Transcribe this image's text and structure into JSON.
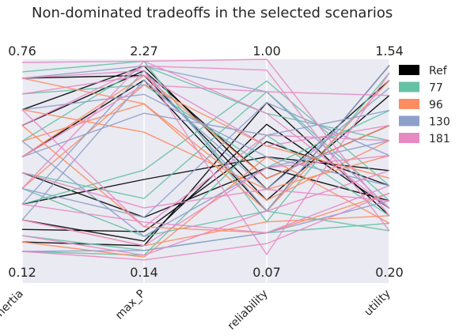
{
  "chart_data": {
    "type": "parallel_coordinates",
    "title": "Non-dominated tradeoffs in the selected scenarios",
    "axes": [
      {
        "name": "inertia",
        "max": 0.76,
        "min": 0.12,
        "max_label": "0.76",
        "min_label": "0.12"
      },
      {
        "name": "max_P",
        "max": 2.27,
        "min": 0.14,
        "max_label": "2.27",
        "min_label": "0.14"
      },
      {
        "name": "reliability",
        "max": 1.0,
        "min": 0.07,
        "max_label": "1.00",
        "min_label": "0.07"
      },
      {
        "name": "utility",
        "max": 1.54,
        "min": 0.2,
        "max_label": "1.54",
        "min_label": "0.20"
      }
    ],
    "legend": {
      "position": "right",
      "entries": [
        {
          "label": "Ref",
          "color": "#000000"
        },
        {
          "label": "77",
          "color": "#66c2a5"
        },
        {
          "label": "96",
          "color": "#fc8d62"
        },
        {
          "label": "130",
          "color": "#8da0cb"
        },
        {
          "label": "181",
          "color": "#e78ac3"
        }
      ]
    },
    "background": "#eaeaf2",
    "grid": true,
    "series": [
      {
        "name": "Ref",
        "color": "#000000",
        "lines": [
          [
            0.7,
            2.1,
            0.35,
            1.3
          ],
          [
            0.6,
            2.2,
            0.4,
            1.4
          ],
          [
            0.3,
            1.0,
            0.55,
            0.8
          ],
          [
            0.22,
            0.45,
            0.62,
            0.7
          ],
          [
            0.18,
            0.3,
            0.8,
            0.5
          ],
          [
            0.4,
            0.6,
            0.5,
            0.6
          ],
          [
            0.55,
            2.15,
            0.45,
            1.1
          ],
          [
            0.25,
            0.35,
            0.7,
            0.55
          ],
          [
            0.45,
            2.05,
            0.3,
            1.5
          ]
        ]
      },
      {
        "name": "77",
        "color": "#66c2a5",
        "lines": [
          [
            0.4,
            0.8,
            0.85,
            0.6
          ],
          [
            0.3,
            1.1,
            0.9,
            0.7
          ],
          [
            0.5,
            2.2,
            0.75,
            1.0
          ],
          [
            0.2,
            0.25,
            0.2,
            0.45
          ],
          [
            0.65,
            2.0,
            0.5,
            1.2
          ],
          [
            0.35,
            0.4,
            0.3,
            0.4
          ],
          [
            0.15,
            0.2,
            0.65,
            0.5
          ],
          [
            0.72,
            2.25,
            0.25,
            1.45
          ]
        ]
      },
      {
        "name": "96",
        "color": "#fc8d62",
        "lines": [
          [
            0.6,
            1.5,
            0.4,
            0.9
          ],
          [
            0.5,
            1.8,
            0.35,
            1.0
          ],
          [
            0.7,
            1.8,
            0.3,
            1.4
          ],
          [
            0.25,
            0.3,
            0.25,
            0.5
          ],
          [
            0.45,
            2.1,
            0.45,
            1.1
          ],
          [
            0.18,
            0.18,
            0.55,
            0.45
          ],
          [
            0.35,
            2.0,
            0.6,
            0.75
          ],
          [
            0.55,
            0.5,
            0.2,
            0.65
          ]
        ]
      },
      {
        "name": "130",
        "color": "#8da0cb",
        "lines": [
          [
            0.35,
            0.6,
            0.8,
            0.9
          ],
          [
            0.45,
            1.7,
            0.65,
            1.2
          ],
          [
            0.6,
            1.9,
            0.55,
            0.7
          ],
          [
            0.25,
            2.05,
            0.4,
            1.35
          ],
          [
            0.7,
            2.2,
            0.85,
            0.55
          ],
          [
            0.15,
            0.25,
            0.2,
            0.6
          ],
          [
            0.5,
            0.4,
            0.5,
            1.0
          ],
          [
            0.3,
            2.15,
            0.3,
            1.5
          ]
        ]
      },
      {
        "name": "181",
        "color": "#e78ac3",
        "lines": [
          [
            0.75,
            2.25,
            1.0,
            0.5
          ],
          [
            0.3,
            0.55,
            0.2,
            0.7
          ],
          [
            0.4,
            0.7,
            0.4,
            0.6
          ],
          [
            0.55,
            2.2,
            0.95,
            0.4
          ],
          [
            0.2,
            0.2,
            0.3,
            0.8
          ],
          [
            0.65,
            2.1,
            0.6,
            1.1
          ],
          [
            0.45,
            2.0,
            0.85,
            1.3
          ],
          [
            0.25,
            0.3,
            0.5,
            0.9
          ],
          [
            0.7,
            2.15,
            0.1,
            1.45
          ],
          [
            0.35,
            2.25,
            0.75,
            0.55
          ],
          [
            0.15,
            0.15,
            0.15,
            0.65
          ],
          [
            0.6,
            0.5,
            0.65,
            1.0
          ]
        ]
      }
    ]
  }
}
